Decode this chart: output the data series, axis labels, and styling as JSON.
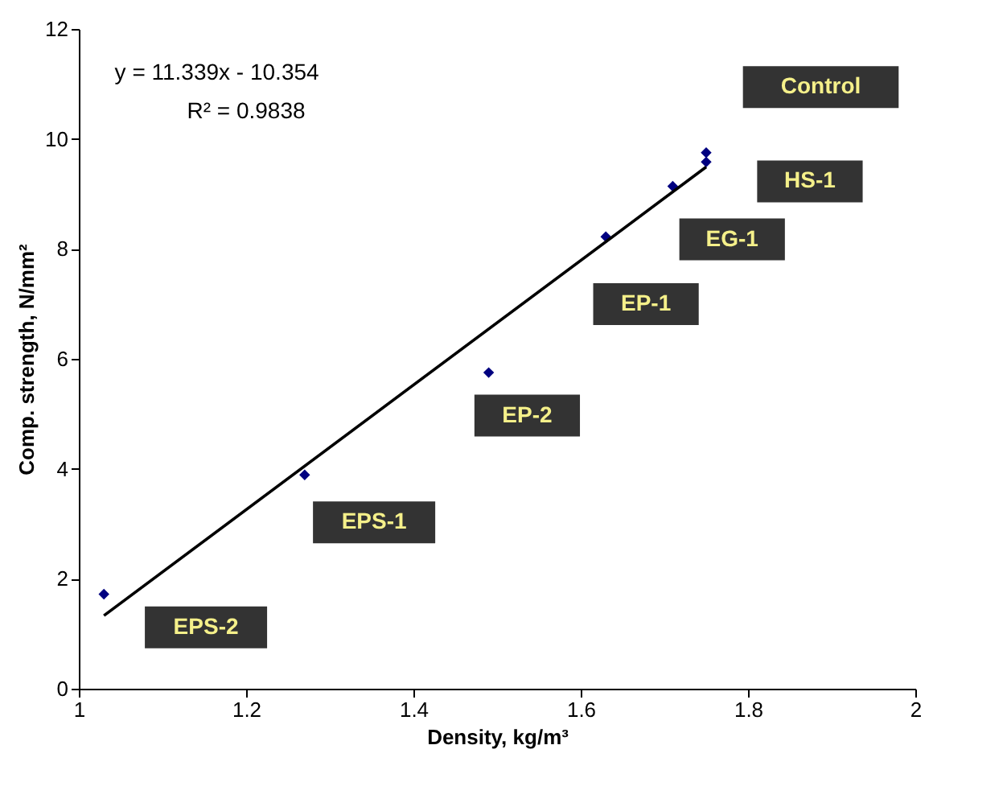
{
  "chart_data": {
    "type": "scatter",
    "xlabel": "Density, kg/m³",
    "ylabel": "Comp. strength, N/mm²",
    "xlim": [
      1,
      2
    ],
    "xticks": [
      1,
      1.2,
      1.4,
      1.6,
      1.8,
      2
    ],
    "ylim": [
      0,
      12
    ],
    "yticks": [
      0,
      2,
      4,
      6,
      8,
      10,
      12
    ],
    "grid": false,
    "series": [
      {
        "color": "#000080",
        "marker": "diamond",
        "x": [
          1.03,
          1.27,
          1.49,
          1.63,
          1.71,
          1.75,
          1.75
        ],
        "values": [
          1.72,
          3.89,
          5.75,
          8.22,
          9.14,
          9.58,
          9.75
        ]
      },
      {
        "type": "line",
        "color": "#000000",
        "x": [
          1.03,
          1.75
        ],
        "values": [
          1.33,
          9.49
        ],
        "line_style": "solid"
      }
    ],
    "annotations": [
      "y = 11.339x - 10.354",
      "R² = 0.9838",
      "Control",
      "HS-1",
      "EG-1",
      "EP-1",
      "EP-2",
      "EPS-1",
      "EPS-2"
    ]
  }
}
